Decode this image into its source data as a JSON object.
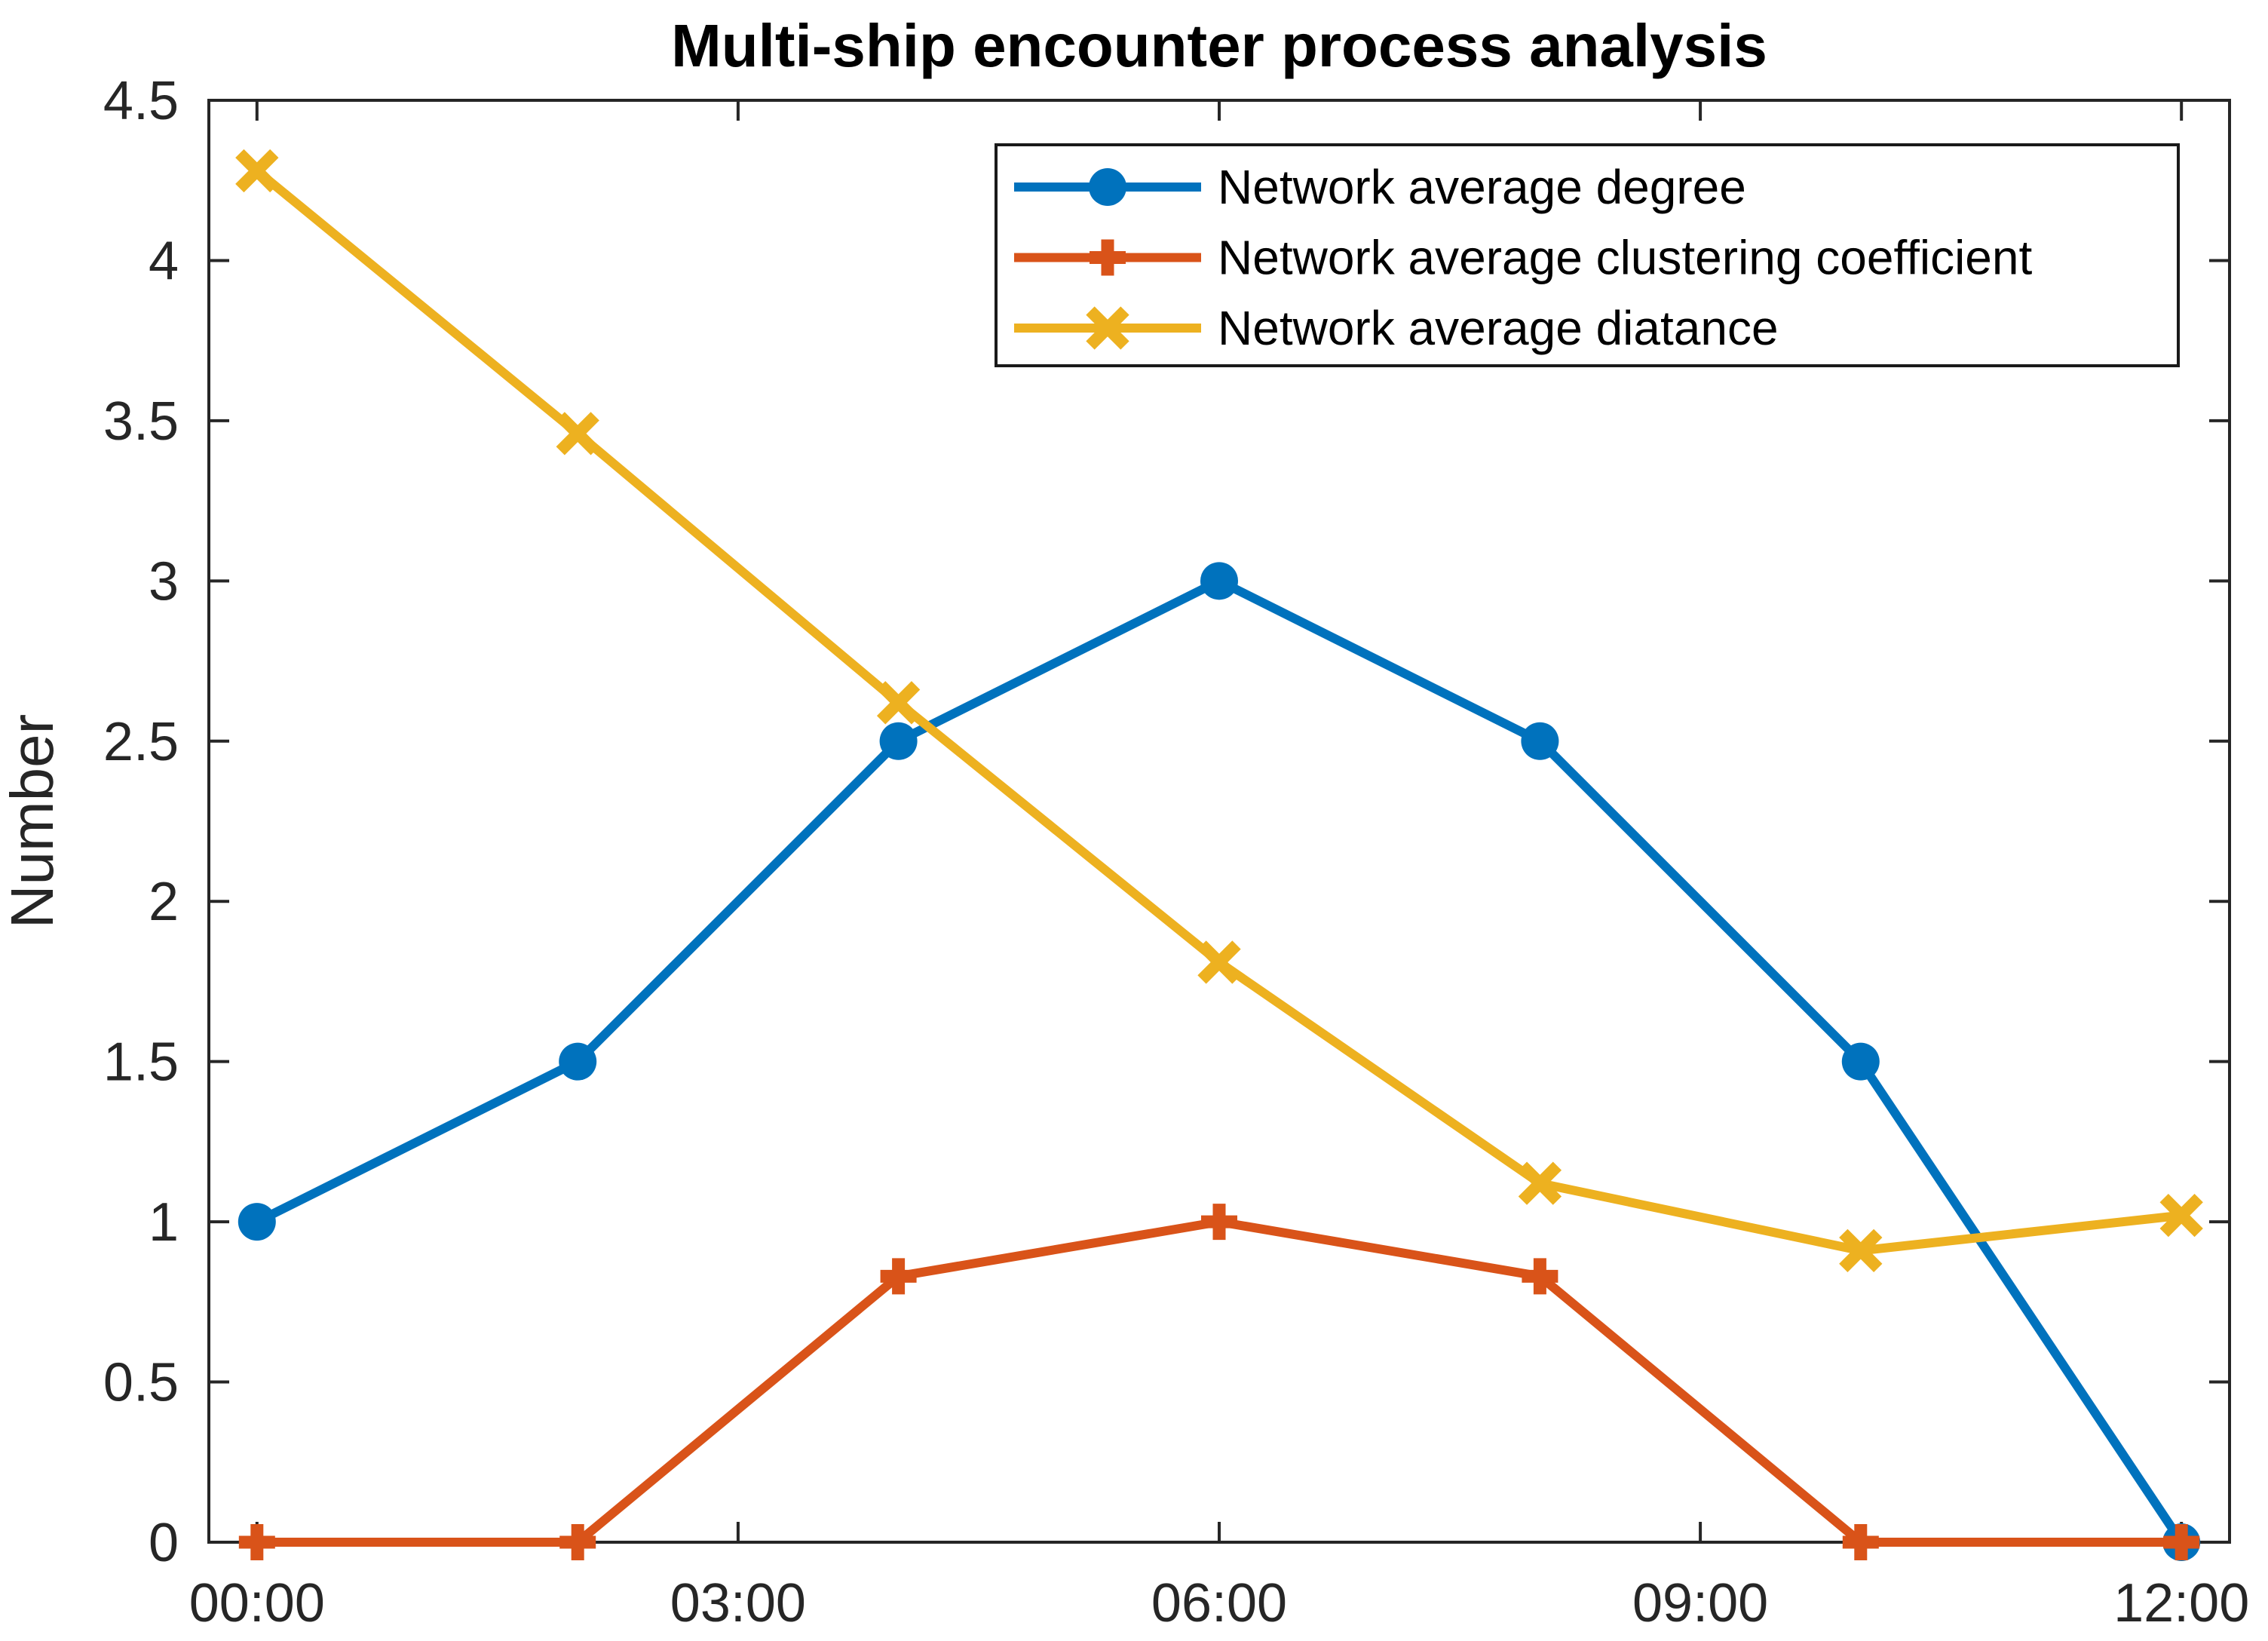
{
  "figure": {
    "background_color": "#ffffff",
    "axis_color": "#262626"
  },
  "chart_data": {
    "type": "line",
    "title": "Multi-ship encounter process analysis",
    "xlabel": "",
    "ylabel": "Number",
    "grid": false,
    "legend_position": "inside-top-right",
    "ylim": [
      0,
      4.5
    ],
    "xlim_hours": [
      -0.3,
      12.3
    ],
    "y_ticks": [
      0,
      0.5,
      1,
      1.5,
      2,
      2.5,
      3,
      3.5,
      4,
      4.5
    ],
    "y_tick_labels": [
      "0",
      "0.5",
      "1",
      "1.5",
      "2",
      "2.5",
      "3",
      "3.5",
      "4",
      "4.5"
    ],
    "x_tick_hours": [
      0,
      3,
      6,
      9,
      12
    ],
    "x_tick_labels": [
      "00:00",
      "03:00",
      "06:00",
      "09:00",
      "12:00"
    ],
    "x_hours": [
      0,
      2,
      4,
      6,
      8,
      10,
      12
    ],
    "series": [
      {
        "name": "Network average degree",
        "color": "#0072BD",
        "marker": "circle",
        "values": [
          1.0,
          1.5,
          2.5,
          3.0,
          2.5,
          1.5,
          0.0
        ]
      },
      {
        "name": "Network average clustering coefficient",
        "color": "#D95319",
        "marker": "plus",
        "values": [
          0.0,
          0.0,
          0.83,
          1.0,
          0.83,
          0.0,
          0.0
        ]
      },
      {
        "name": "Network average diatance",
        "color": "#EDB120",
        "marker": "x",
        "values": [
          4.28,
          3.46,
          2.62,
          1.81,
          1.12,
          0.91,
          1.02
        ]
      }
    ]
  }
}
